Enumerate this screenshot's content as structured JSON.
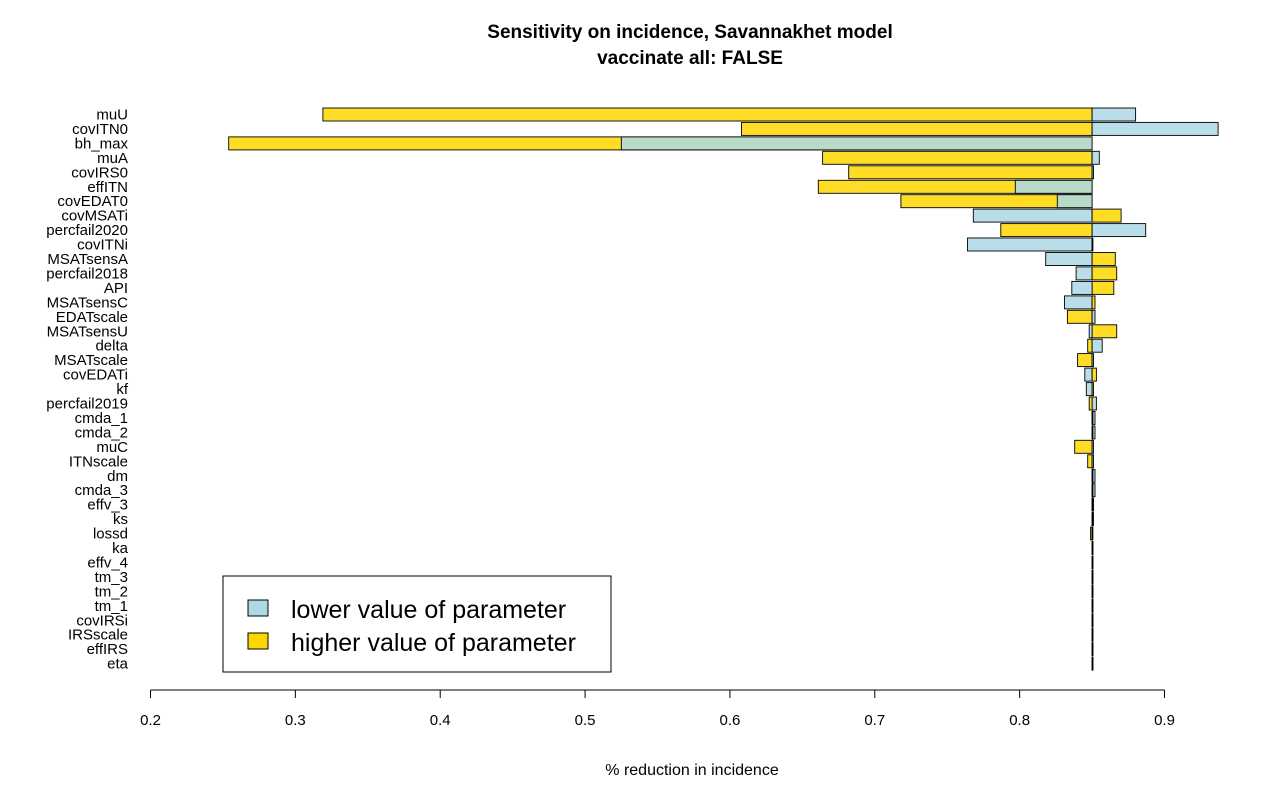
{
  "chart_data": {
    "type": "bar",
    "orientation": "horizontal",
    "title": "Sensitivity on incidence, Savannakhet model",
    "subtitle": "vaccinate all: FALSE",
    "xlabel": "% reduction in incidence",
    "ylabel": "",
    "xlim": [
      0.2,
      0.9
    ],
    "xticks": [
      "0.2",
      "0.3",
      "0.4",
      "0.5",
      "0.6",
      "0.7",
      "0.8",
      "0.9"
    ],
    "baseline": 0.85,
    "legend_position": "bottom-left",
    "colors": {
      "lower": "#ADD8E6",
      "higher": "#FFD700"
    },
    "series": [
      {
        "name": "lower value of parameter",
        "key": "lower"
      },
      {
        "name": "higher value of parameter",
        "key": "higher"
      }
    ],
    "categories": [
      "muU",
      "covITN0",
      "bh_max",
      "muA",
      "covIRS0",
      "effITN",
      "covEDAT0",
      "covMSATi",
      "percfail2020",
      "covITNi",
      "MSATsensA",
      "percfail2018",
      "API",
      "MSATsensC",
      "EDATscale",
      "MSATsensU",
      "delta",
      "MSATscale",
      "covEDATi",
      "kf",
      "percfail2019",
      "cmda_1",
      "cmda_2",
      "muC",
      "ITNscale",
      "dm",
      "cmda_3",
      "effv_3",
      "ks",
      "lossd",
      "ka",
      "effv_4",
      "tm_3",
      "tm_2",
      "tm_1",
      "covIRSi",
      "IRSscale",
      "effIRS",
      "eta"
    ],
    "lower": [
      0.88,
      0.937,
      0.525,
      0.855,
      0.851,
      0.797,
      0.826,
      0.768,
      0.887,
      0.764,
      0.818,
      0.839,
      0.836,
      0.831,
      0.852,
      0.848,
      0.857,
      0.851,
      0.845,
      0.846,
      0.853,
      0.852,
      0.852,
      0.851,
      0.851,
      0.852,
      0.852,
      0.851,
      0.851,
      0.85,
      0.85,
      0.85,
      0.85,
      0.85,
      0.85,
      0.85,
      0.85,
      0.85,
      0.85
    ],
    "higher": [
      0.319,
      0.608,
      0.254,
      0.664,
      0.682,
      0.661,
      0.718,
      0.87,
      0.787,
      0.85,
      0.866,
      0.867,
      0.865,
      0.852,
      0.833,
      0.867,
      0.847,
      0.84,
      0.853,
      0.851,
      0.848,
      0.85,
      0.85,
      0.838,
      0.847,
      0.85,
      0.85,
      0.85,
      0.85,
      0.849,
      0.85,
      0.85,
      0.85,
      0.85,
      0.85,
      0.85,
      0.85,
      0.85,
      0.85
    ]
  }
}
